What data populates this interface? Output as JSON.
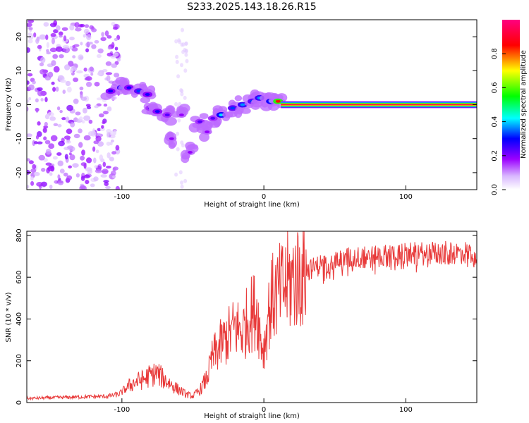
{
  "page": {
    "title": "S233.2025.143.18.26.R15"
  },
  "colors": {
    "snr_line": "#e83a3a",
    "band": [
      "#9b00ff",
      "#0000ff",
      "#00ffff",
      "#00ff00",
      "#ffff00",
      "#ff0000",
      "#ff00aa"
    ],
    "background": "#ffffff"
  },
  "chart_data": [
    {
      "type": "heatmap",
      "title": "S233.2025.143.18.26.R15",
      "xlabel": "Height of straight line (km)",
      "ylabel": "Frequency (Hz)",
      "xlim": [
        -167,
        150
      ],
      "ylim": [
        -25,
        25
      ],
      "x_ticks": [
        -100,
        0,
        100
      ],
      "y_ticks": [
        -20,
        -10,
        0,
        10,
        20
      ],
      "colorbar": {
        "label": "Normalized spectral amplitude",
        "range": [
          0,
          1
        ],
        "ticks": [
          "0.0",
          "0.2",
          "0.4",
          "0.6",
          "0.8"
        ],
        "colormap": "rainbow (violet-blue-cyan-green-yellow-red-magenta)"
      },
      "features": {
        "noise_region_x": [
          -167,
          -102
        ],
        "ridge": [
          {
            "x": -108,
            "y": 4,
            "amp": 0.3
          },
          {
            "x": -100,
            "y": 5,
            "amp": 0.4
          },
          {
            "x": -95,
            "y": 5,
            "amp": 0.3
          },
          {
            "x": -88,
            "y": 4,
            "amp": 0.35
          },
          {
            "x": -82,
            "y": 3,
            "amp": 0.3
          },
          {
            "x": -80,
            "y": -1,
            "amp": 0.25
          },
          {
            "x": -75,
            "y": -2,
            "amp": 0.3
          },
          {
            "x": -68,
            "y": -3,
            "amp": 0.25
          },
          {
            "x": -65,
            "y": -10,
            "amp": 0.2
          },
          {
            "x": -58,
            "y": -3,
            "amp": 0.2
          },
          {
            "x": -52,
            "y": -14,
            "amp": 0.2
          },
          {
            "x": -45,
            "y": -5,
            "amp": 0.25
          },
          {
            "x": -40,
            "y": -8,
            "amp": 0.2
          },
          {
            "x": -36,
            "y": -4,
            "amp": 0.25
          },
          {
            "x": -30,
            "y": -3,
            "amp": 0.45
          },
          {
            "x": -22,
            "y": -1,
            "amp": 0.35
          },
          {
            "x": -15,
            "y": 0,
            "amp": 0.4
          },
          {
            "x": -8,
            "y": 1,
            "amp": 0.35
          },
          {
            "x": -3,
            "y": 2,
            "amp": 0.4
          },
          {
            "x": 5,
            "y": 1,
            "amp": 0.45
          },
          {
            "x": 10,
            "y": 1,
            "amp": 0.85
          }
        ],
        "steady_line": {
          "x_from": 12,
          "x_to": 150,
          "y": 0,
          "amp": 0.95
        }
      }
    },
    {
      "type": "line",
      "xlabel": "Height of straight line (km)",
      "ylabel": "SNR (10 * v/v)",
      "xlim": [
        -167,
        150
      ],
      "ylim": [
        0,
        820
      ],
      "x_ticks": [
        -100,
        0,
        100
      ],
      "y_ticks": [
        0,
        200,
        400,
        600,
        800
      ],
      "series": [
        {
          "x": [
            -167,
            -140,
            -110,
            -102,
            -95,
            -90,
            -85,
            -80,
            -75,
            -72,
            -68,
            -62,
            -55,
            -50,
            -45,
            -40,
            -36,
            -30,
            -25,
            -20,
            -15,
            -10,
            -5,
            -2,
            0,
            3,
            6,
            10,
            15,
            20,
            25,
            30,
            40,
            50,
            60,
            80,
            100,
            120,
            150
          ],
          "y": [
            20,
            25,
            30,
            40,
            80,
            100,
            110,
            130,
            140,
            120,
            100,
            70,
            40,
            30,
            60,
            120,
            220,
            280,
            320,
            360,
            340,
            420,
            450,
            300,
            250,
            420,
            500,
            520,
            560,
            590,
            610,
            630,
            660,
            680,
            690,
            700,
            710,
            715,
            720
          ]
        }
      ]
    }
  ]
}
